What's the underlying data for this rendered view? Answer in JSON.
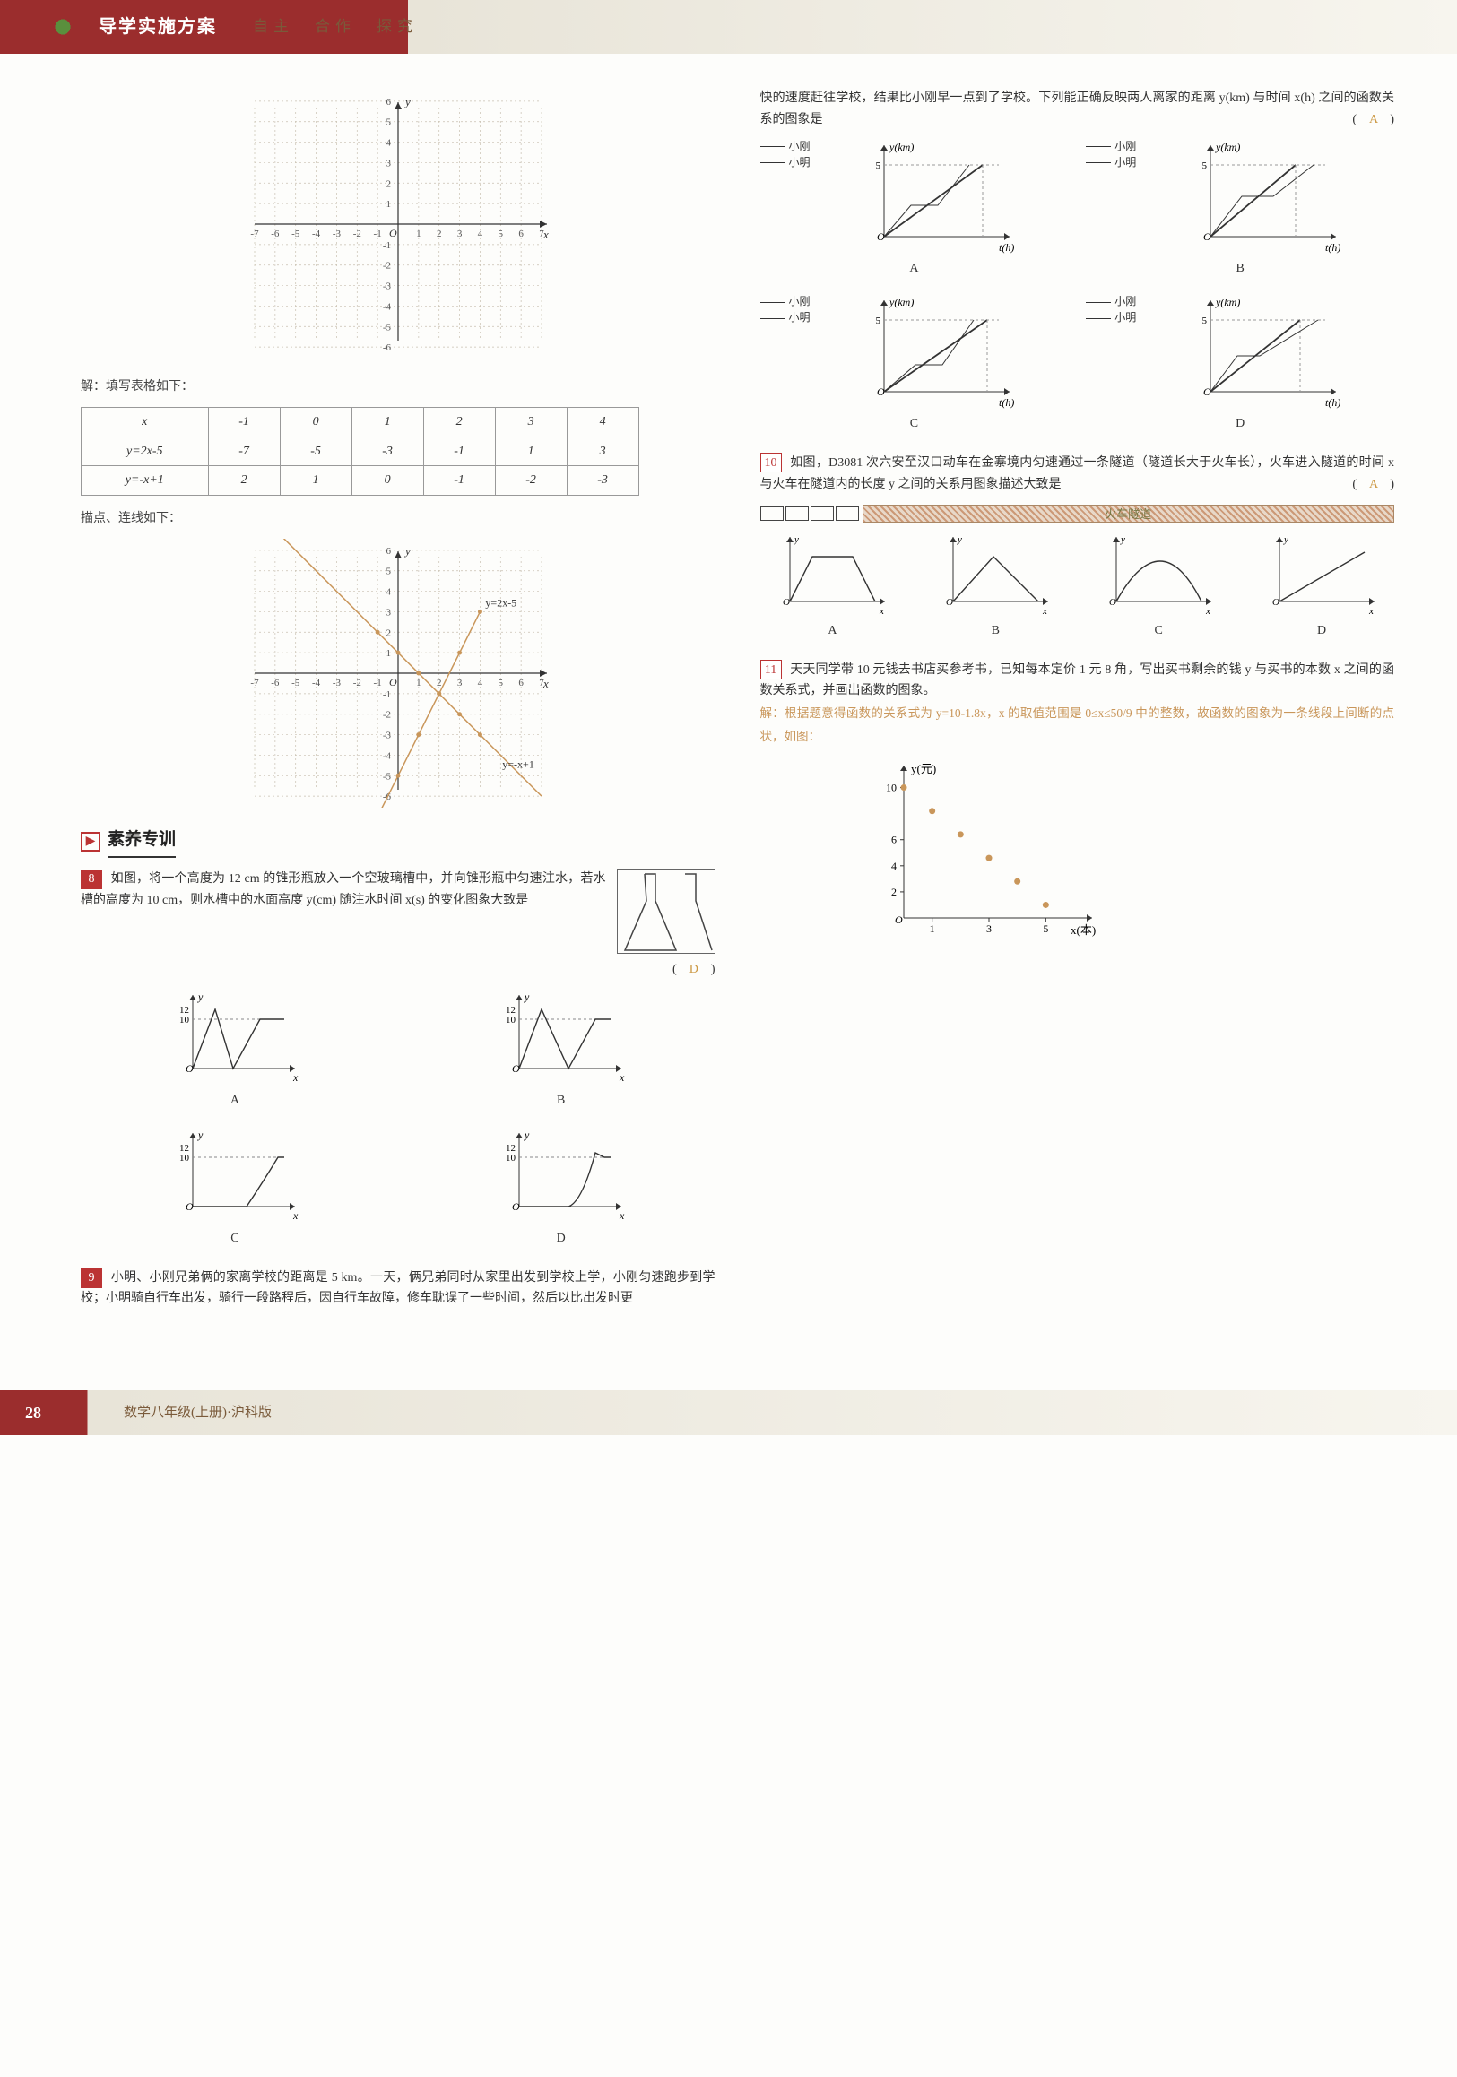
{
  "header": {
    "title": "导学实施方案",
    "subtitle": "自主　合作　探究"
  },
  "grid1": {
    "xlim": [
      -7,
      7
    ],
    "ylim": [
      -7,
      7
    ],
    "xtick_step": 1,
    "ytick_step": 1,
    "axis_labels": {
      "x": "x",
      "y": "y"
    },
    "grid_color": "#c8c0b0",
    "axis_color": "#333333",
    "background": "#fdfdfb"
  },
  "caption_fill": "解：填写表格如下：",
  "table": {
    "columns": [
      "x",
      "-1",
      "0",
      "1",
      "2",
      "3",
      "4"
    ],
    "rows": [
      [
        "y=2x-5",
        "-7",
        "-5",
        "-3",
        "-1",
        "1",
        "3"
      ],
      [
        "y=-x+1",
        "2",
        "1",
        "0",
        "-1",
        "-2",
        "-3"
      ]
    ],
    "border_color": "#999999",
    "cell_fontsize": 14
  },
  "caption_plot": "描点、连线如下：",
  "grid2": {
    "xlim": [
      -7,
      7
    ],
    "ylim": [
      -7,
      7
    ],
    "xtick_step": 1,
    "ytick_step": 1,
    "axis_labels": {
      "x": "x",
      "y": "y"
    },
    "grid_color": "#c8c0b0",
    "axis_color": "#333333",
    "line1": {
      "label": "y=2x-5",
      "x": [
        -1,
        4
      ],
      "y": [
        -7,
        3
      ],
      "color": "#c9965a"
    },
    "line2": {
      "label": "y=-x+1",
      "x": [
        -6,
        7
      ],
      "y": [
        7,
        -6
      ],
      "color": "#c9965a"
    },
    "points_color": "#c9965a"
  },
  "section": {
    "marker": "▶",
    "title": "素养专训"
  },
  "q8": {
    "num": "8",
    "text": "如图，将一个高度为 12 cm 的锥形瓶放入一个空玻璃槽中，并向锥形瓶中匀速注水，若水槽的高度为 10 cm，则水槽中的水面高度 y(cm) 随注水时间 x(s) 的变化图象大致是",
    "answer": "D",
    "options": {
      "labels": [
        "A",
        "B",
        "C",
        "D"
      ],
      "ylabel": "y",
      "xlabel": "x",
      "y_marks": [
        10,
        12
      ],
      "axis_color": "#333333",
      "curve_color": "#333333"
    },
    "cone": {
      "height_cm": 12,
      "slot_height_cm": 10
    }
  },
  "q9": {
    "num": "9",
    "text": "小明、小刚兄弟俩的家离学校的距离是 5 km。一天，俩兄弟同时从家里出发到学校上学，小刚匀速跑步到学校；小明骑自行车出发，骑行一段路程后，因自行车故障，修车耽误了一些时间，然后以比出发时更快的速度赶往学校，结果比小刚早一点到了学校。下列能正确反映两人离家的距离 y(km) 与时间 x(h) 之间的函数关系的图象是",
    "answer": "A",
    "options": {
      "labels": [
        "A",
        "B",
        "C",
        "D"
      ],
      "ylabel": "y(km)",
      "xlabel": "t(h)",
      "y_max": 5,
      "legend": {
        "gang": "小刚",
        "ming": "小明"
      },
      "axis_color": "#333333",
      "line_color": "#333333"
    }
  },
  "q10": {
    "num": "10",
    "text": "如图，D3081 次六安至汉口动车在金寨境内匀速通过一条隧道（隧道长大于火车长），火车进入隧道的时间 x 与火车在隧道内的长度 y 之间的关系用图象描述大致是",
    "answer": "A",
    "tunnel_label": "火车隧道",
    "options": {
      "labels": [
        "A",
        "B",
        "C",
        "D"
      ],
      "ylabel": "y",
      "xlabel": "x",
      "axis_color": "#333333",
      "curve_color": "#333333"
    }
  },
  "q11": {
    "num": "11",
    "text": "天天同学带 10 元钱去书店买参考书，已知每本定价 1 元 8 角，写出买书剩余的钱 y 与买书的本数 x 之间的函数关系式，并画出函数的图象。",
    "solution": "解：根据题意得函数的关系式为 y=10-1.8x，x 的取值范围是 0≤x≤50/9 中的整数，故函数的图象为一条线段上间断的点状，如图：",
    "chart": {
      "type": "scatter",
      "xlabel": "x(本)",
      "ylabel": "y(元)",
      "x": [
        0,
        1,
        2,
        3,
        4,
        5
      ],
      "y": [
        10,
        8.2,
        6.4,
        4.6,
        2.8,
        1.0
      ],
      "xlim": [
        0,
        6
      ],
      "ylim": [
        0,
        11
      ],
      "xticks": [
        1,
        3,
        5
      ],
      "yticks": [
        2,
        4,
        6,
        10
      ],
      "point_color": "#c9965a",
      "axis_color": "#333333",
      "tick_fontsize": 12
    }
  },
  "footer": {
    "page": "28",
    "text": "数学八年级(上册)·沪科版"
  }
}
